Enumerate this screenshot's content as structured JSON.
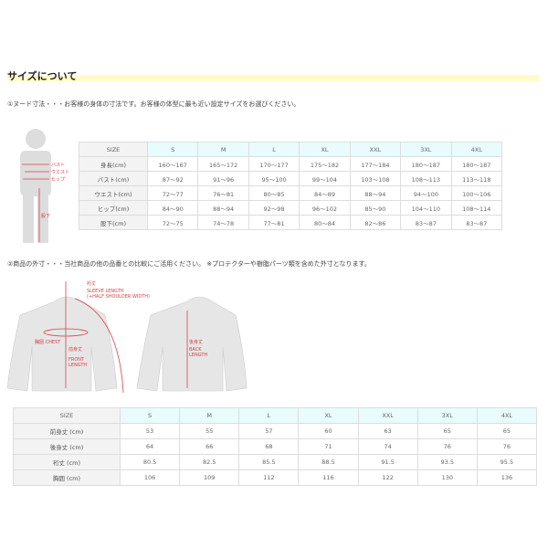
{
  "section_title": "サイズについて",
  "nude": {
    "note": "①ヌード寸法・・・お客様の身体の寸法です。お客様の体型に最も近い設定サイズをお選びください。",
    "figure_labels": [
      "バスト",
      "ウエスト",
      "ヒップ",
      "股下"
    ],
    "headers": [
      "SIZE",
      "S",
      "M",
      "L",
      "XL",
      "XXL",
      "3XL",
      "4XL"
    ],
    "rows": [
      [
        "身長(cm)",
        "160～167",
        "165～172",
        "170～177",
        "175～182",
        "177～184",
        "180～187",
        "180～187"
      ],
      [
        "バスト(cm)",
        "87～92",
        "91～96",
        "95～100",
        "99～104",
        "103～108",
        "108～113",
        "113～118"
      ],
      [
        "ウエスト(cm)",
        "72～77",
        "76～81",
        "80～85",
        "84～89",
        "88～94",
        "94～100",
        "100～106"
      ],
      [
        "ヒップ(cm)",
        "84～90",
        "88～94",
        "92～98",
        "96～102",
        "85～90",
        "104～110",
        "108～114"
      ],
      [
        "股下(cm)",
        "72～75",
        "74～78",
        "77～81",
        "80～84",
        "82～86",
        "83～87",
        "83～87"
      ]
    ]
  },
  "garment": {
    "note": "②商品の外寸・・・当社商品の他の品番との比較にご活用ください。 ※プロテクターや樹脂パーツ類を含めた外寸となります。",
    "figure_labels": {
      "sleeve_jp": "裄丈",
      "sleeve_en1": "SLEEVE LENGTH",
      "sleeve_en2": "(+HALF SHOULDER WIDTH)",
      "chest": "胸囲 CHEST",
      "front_jp": "前身丈",
      "front_en1": "FRONT",
      "front_en2": "LENGTH",
      "back_jp": "後身丈",
      "back_en1": "BACK",
      "back_en2": "LENGTH"
    },
    "headers": [
      "SIZE",
      "S",
      "M",
      "L",
      "XL",
      "XXL",
      "3XL",
      "4XL"
    ],
    "rows": [
      [
        "前身丈 (cm)",
        "53",
        "55",
        "57",
        "60",
        "63",
        "65",
        "65"
      ],
      [
        "後身丈 (cm)",
        "64",
        "66",
        "68",
        "71",
        "74",
        "76",
        "76"
      ],
      [
        "裄丈 (cm)",
        "80.5",
        "82.5",
        "85.5",
        "88.5",
        "91.5",
        "93.5",
        "95.5"
      ],
      [
        "胸囲 (cm)",
        "106",
        "109",
        "112",
        "116",
        "122",
        "130",
        "136"
      ]
    ]
  },
  "colors": {
    "accent_red": "#d9414a",
    "header_cyan": "#e8fbfd",
    "title_highlight": "#fffcc8"
  }
}
